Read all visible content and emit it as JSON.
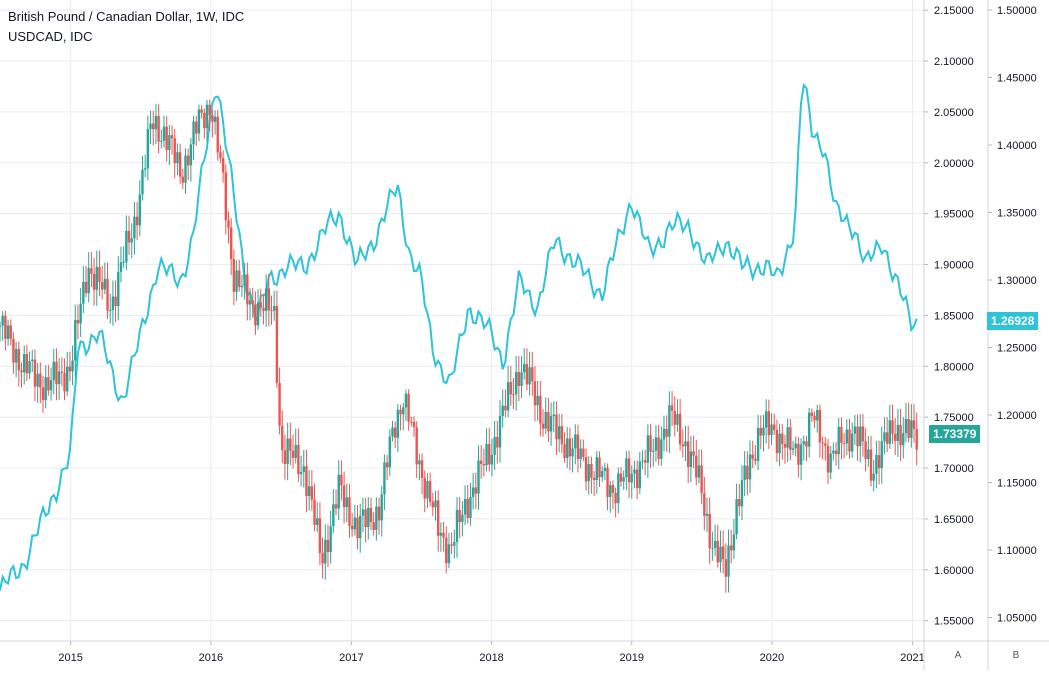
{
  "legend": {
    "main": "British Pound / Canadian Dollar, 1W, IDC",
    "compare": "USDCAD, IDC"
  },
  "colors": {
    "up": "#26a69a",
    "down": "#ef5350",
    "compare": "#2ec3d6",
    "grid": "#e9ecf1"
  },
  "last_values": {
    "main": "1.73379",
    "compare": "1.26928"
  },
  "scale_buttons": {
    "left": "A",
    "right": "B"
  },
  "chart_data": {
    "type": "candlestick",
    "x_ticks": [
      "2015",
      "2016",
      "2017",
      "2018",
      "2019",
      "2020",
      "2021"
    ],
    "y_left": {
      "ticks": [
        "2.15000",
        "2.10000",
        "2.05000",
        "2.00000",
        "1.95000",
        "1.90000",
        "1.85000",
        "1.80000",
        "1.75000",
        "1.70000",
        "1.65000",
        "1.60000",
        "1.55000"
      ],
      "range": [
        1.53,
        2.16
      ]
    },
    "y_right": {
      "ticks": [
        "1.50000",
        "1.45000",
        "1.40000",
        "1.35000",
        "1.30000",
        "1.25000",
        "1.20000",
        "1.15000",
        "1.10000",
        "1.05000"
      ],
      "range": [
        1.0326,
        1.5074
      ]
    },
    "series": [
      {
        "name": "British Pound / Canadian Dollar, 1W, IDC",
        "type": "candlestick",
        "anchor_points": [
          [
            "2014-07-01",
            1.84
          ],
          [
            "2014-09-01",
            1.8
          ],
          [
            "2014-11-01",
            1.78
          ],
          [
            "2015-01-01",
            1.8
          ],
          [
            "2015-02-15",
            1.9
          ],
          [
            "2015-03-15",
            1.88
          ],
          [
            "2015-04-15",
            1.86
          ],
          [
            "2015-05-15",
            1.9
          ],
          [
            "2015-06-15",
            1.94
          ],
          [
            "2015-08-01",
            2.04
          ],
          [
            "2015-09-01",
            2.03
          ],
          [
            "2015-10-15",
            1.99
          ],
          [
            "2015-12-01",
            2.04
          ],
          [
            "2016-01-01",
            2.06
          ],
          [
            "2016-02-01",
            1.98
          ],
          [
            "2016-03-01",
            1.89
          ],
          [
            "2016-04-15",
            1.86
          ],
          [
            "2016-05-15",
            1.86
          ],
          [
            "2016-06-15",
            1.85
          ],
          [
            "2016-07-01",
            1.72
          ],
          [
            "2016-09-01",
            1.7
          ],
          [
            "2016-10-15",
            1.61
          ],
          [
            "2016-12-01",
            1.68
          ],
          [
            "2017-01-15",
            1.64
          ],
          [
            "2017-03-15",
            1.66
          ],
          [
            "2017-04-20",
            1.74
          ],
          [
            "2017-05-15",
            1.77
          ],
          [
            "2017-07-01",
            1.7
          ],
          [
            "2017-08-15",
            1.64
          ],
          [
            "2017-09-15",
            1.62
          ],
          [
            "2017-11-01",
            1.67
          ],
          [
            "2018-01-01",
            1.72
          ],
          [
            "2018-03-15",
            1.8
          ],
          [
            "2018-04-15",
            1.78
          ],
          [
            "2018-05-15",
            1.75
          ],
          [
            "2018-07-01",
            1.73
          ],
          [
            "2018-09-15",
            1.7
          ],
          [
            "2018-11-15",
            1.68
          ],
          [
            "2019-01-15",
            1.7
          ],
          [
            "2019-03-01",
            1.72
          ],
          [
            "2019-04-15",
            1.75
          ],
          [
            "2019-05-15",
            1.73
          ],
          [
            "2019-07-01",
            1.68
          ],
          [
            "2019-08-01",
            1.62
          ],
          [
            "2019-09-01",
            1.6
          ],
          [
            "2019-10-01",
            1.66
          ],
          [
            "2019-12-01",
            1.74
          ],
          [
            "2020-02-01",
            1.73
          ],
          [
            "2020-03-01",
            1.71
          ],
          [
            "2020-04-15",
            1.75
          ],
          [
            "2020-06-01",
            1.71
          ],
          [
            "2020-08-01",
            1.74
          ],
          [
            "2020-09-15",
            1.7
          ],
          [
            "2020-11-15",
            1.74
          ],
          [
            "2021-01-15",
            1.73
          ]
        ],
        "last": 1.73379
      },
      {
        "name": "USDCAD, IDC",
        "type": "line",
        "points": [
          [
            "2014-07-01",
            1.07
          ],
          [
            "2014-09-01",
            1.09
          ],
          [
            "2014-11-01",
            1.13
          ],
          [
            "2015-01-01",
            1.17
          ],
          [
            "2015-01-20",
            1.25
          ],
          [
            "2015-03-15",
            1.26
          ],
          [
            "2015-05-15",
            1.21
          ],
          [
            "2015-06-15",
            1.24
          ],
          [
            "2015-08-15",
            1.31
          ],
          [
            "2015-10-15",
            1.3
          ],
          [
            "2015-11-15",
            1.33
          ],
          [
            "2016-01-15",
            1.45
          ],
          [
            "2016-02-15",
            1.39
          ],
          [
            "2016-04-01",
            1.3
          ],
          [
            "2016-05-01",
            1.27
          ],
          [
            "2016-06-01",
            1.3
          ],
          [
            "2016-07-15",
            1.31
          ],
          [
            "2016-09-01",
            1.31
          ],
          [
            "2016-11-01",
            1.34
          ],
          [
            "2016-12-01",
            1.35
          ],
          [
            "2017-01-15",
            1.31
          ],
          [
            "2017-03-01",
            1.33
          ],
          [
            "2017-05-01",
            1.37
          ],
          [
            "2017-06-01",
            1.32
          ],
          [
            "2017-07-01",
            1.3
          ],
          [
            "2017-08-01",
            1.25
          ],
          [
            "2017-09-15",
            1.22
          ],
          [
            "2017-11-01",
            1.28
          ],
          [
            "2018-01-01",
            1.26
          ],
          [
            "2018-02-01",
            1.24
          ],
          [
            "2018-03-15",
            1.3
          ],
          [
            "2018-05-01",
            1.28
          ],
          [
            "2018-06-15",
            1.33
          ],
          [
            "2018-08-15",
            1.31
          ],
          [
            "2018-10-15",
            1.29
          ],
          [
            "2018-12-31",
            1.36
          ],
          [
            "2019-02-15",
            1.32
          ],
          [
            "2019-04-15",
            1.34
          ],
          [
            "2019-06-01",
            1.34
          ],
          [
            "2019-07-15",
            1.31
          ],
          [
            "2019-09-01",
            1.33
          ],
          [
            "2019-10-15",
            1.31
          ],
          [
            "2019-12-15",
            1.31
          ],
          [
            "2020-01-15",
            1.3
          ],
          [
            "2020-03-01",
            1.34
          ],
          [
            "2020-03-20",
            1.45
          ],
          [
            "2020-04-15",
            1.41
          ],
          [
            "2020-05-15",
            1.4
          ],
          [
            "2020-06-15",
            1.35
          ],
          [
            "2020-08-01",
            1.34
          ],
          [
            "2020-09-01",
            1.31
          ],
          [
            "2020-10-15",
            1.33
          ],
          [
            "2020-11-15",
            1.3
          ],
          [
            "2020-12-31",
            1.27
          ],
          [
            "2021-01-15",
            1.26928
          ]
        ],
        "last": 1.26928
      }
    ],
    "grid": true,
    "legend_position": "top-left"
  }
}
